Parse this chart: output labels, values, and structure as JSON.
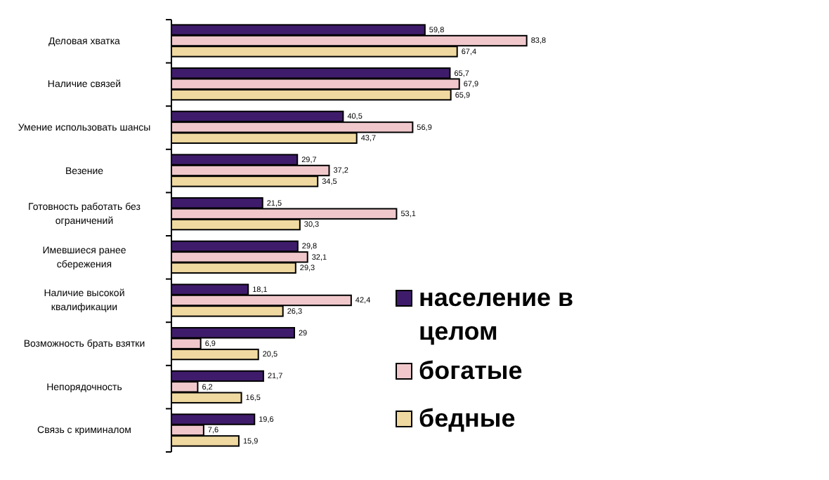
{
  "chart_data": {
    "type": "bar",
    "orientation": "horizontal",
    "categories": [
      "Деловая хватка",
      "Наличие связей",
      "Умение использовать шансы",
      "Везение",
      "Готовность работать без ограничений",
      "Имевшиеся ранее сбережения",
      "Наличие высокой квалификации",
      "Возможность брать взятки",
      "Непорядочность",
      "Связь с криминалом"
    ],
    "series": [
      {
        "name": "население в целом",
        "color": "#3f1c6b",
        "values": [
          59.8,
          65.7,
          40.5,
          29.7,
          21.5,
          29.8,
          18.1,
          29,
          21.7,
          19.6
        ],
        "value_labels": [
          "59,8",
          "65,7",
          "40,5",
          "29,7",
          "21,5",
          "29,8",
          "18,1",
          "29",
          "21,7",
          "19,6"
        ]
      },
      {
        "name": "богатые",
        "color": "#f0c8cc",
        "values": [
          83.8,
          67.9,
          56.9,
          37.2,
          53.1,
          32.1,
          42.4,
          6.9,
          6.2,
          7.6
        ],
        "value_labels": [
          "83,8",
          "67,9",
          "56,9",
          "37,2",
          "53,1",
          "32,1",
          "42,4",
          "6,9",
          "6,2",
          "7,6"
        ]
      },
      {
        "name": "бедные",
        "color": "#f0d9a0",
        "values": [
          67.4,
          65.9,
          43.7,
          34.5,
          30.3,
          29.3,
          26.3,
          20.5,
          16.5,
          15.9
        ],
        "value_labels": [
          "67,4",
          "65,9",
          "43,7",
          "34,5",
          "30,3",
          "29,3",
          "26,3",
          "20,5",
          "16,5",
          "15,9"
        ]
      }
    ],
    "legend": "right"
  }
}
